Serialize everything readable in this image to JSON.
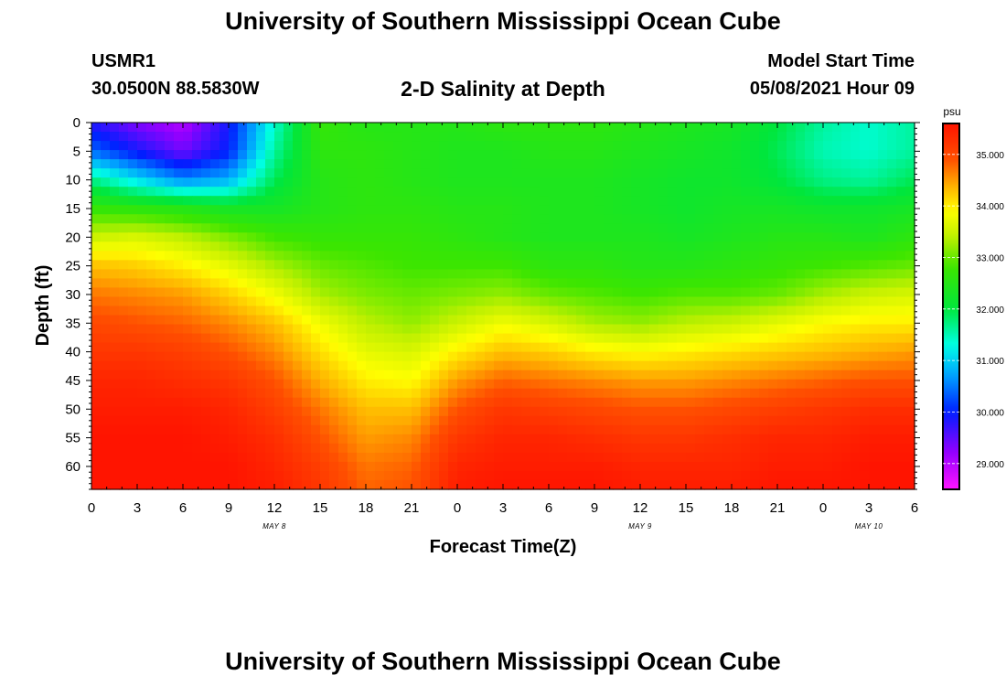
{
  "header": {
    "title_top": "University of Southern Mississippi Ocean Cube",
    "title_bottom": "University of Southern Mississippi Ocean Cube",
    "station_id": "USMR1",
    "station_coords": "30.0500N  88.5830W",
    "plot_title": "2-D Salinity at Depth",
    "model_label": "Model Start Time",
    "model_time": "05/08/2021 Hour 09"
  },
  "chart_data": {
    "type": "heatmap",
    "title": "2-D Salinity at Depth",
    "xlabel": "Forecast Time(Z)",
    "ylabel": "Depth (ft)",
    "x_hours": [
      0,
      3,
      6,
      9,
      12,
      15,
      18,
      21,
      24,
      27,
      30,
      33,
      36,
      39,
      42,
      45,
      48,
      51,
      54
    ],
    "x_tick_labels": [
      "0",
      "3",
      "6",
      "9",
      "12",
      "15",
      "18",
      "21",
      "0",
      "3",
      "6",
      "9",
      "12",
      "15",
      "18",
      "21",
      "0",
      "3",
      "6"
    ],
    "xlim": [
      0,
      54
    ],
    "date_labels": [
      {
        "text": "MAY 8",
        "hour": 12
      },
      {
        "text": "MAY 9",
        "hour": 36
      },
      {
        "text": "MAY 10",
        "hour": 51
      }
    ],
    "y_ticks": [
      0,
      5,
      10,
      15,
      20,
      25,
      30,
      35,
      40,
      45,
      50,
      55,
      60
    ],
    "ylim": [
      0,
      64
    ],
    "colorbar": {
      "unit": "psu",
      "range": [
        28.5,
        35.6
      ],
      "tick_values": [
        29,
        30,
        31,
        32,
        33,
        34,
        35
      ],
      "tick_labels": [
        "29.000",
        "30.000",
        "31.000",
        "32.000",
        "33.000",
        "34.000",
        "35.000"
      ]
    },
    "grid_hours": [
      0,
      3,
      6,
      9,
      12,
      15,
      18,
      21,
      24,
      27,
      30,
      33,
      36,
      39,
      42,
      45,
      48,
      51,
      54
    ],
    "grid_depths": [
      0,
      5,
      10,
      15,
      20,
      25,
      30,
      35,
      40,
      45,
      50,
      55,
      60,
      64
    ],
    "values": [
      [
        29.8,
        29.3,
        29.0,
        29.9,
        31.4,
        32.7,
        32.5,
        32.5,
        32.5,
        32.6,
        32.6,
        32.6,
        32.5,
        32.4,
        32.3,
        32.0,
        31.6,
        31.4,
        31.6
      ],
      [
        30.4,
        29.9,
        29.4,
        30.0,
        31.6,
        32.6,
        32.6,
        32.5,
        32.4,
        32.4,
        32.5,
        32.5,
        32.4,
        32.3,
        32.2,
        31.9,
        31.5,
        31.4,
        31.6
      ],
      [
        31.7,
        31.1,
        30.6,
        30.8,
        31.9,
        32.5,
        32.6,
        32.5,
        32.4,
        32.4,
        32.4,
        32.4,
        32.3,
        32.2,
        32.2,
        32.0,
        31.7,
        31.6,
        31.9
      ],
      [
        32.7,
        32.6,
        32.5,
        32.3,
        32.3,
        32.5,
        32.6,
        32.6,
        32.5,
        32.5,
        32.4,
        32.4,
        32.3,
        32.2,
        32.3,
        32.3,
        32.2,
        32.2,
        32.3
      ],
      [
        33.5,
        33.6,
        33.4,
        33.1,
        32.8,
        32.7,
        32.7,
        32.7,
        32.6,
        32.5,
        32.4,
        32.4,
        32.4,
        32.3,
        32.4,
        32.5,
        32.5,
        32.4,
        32.6
      ],
      [
        34.3,
        34.2,
        34.0,
        33.7,
        33.3,
        33.0,
        32.9,
        32.8,
        32.8,
        32.8,
        32.6,
        32.6,
        32.5,
        32.5,
        32.6,
        32.7,
        32.8,
        32.9,
        33.0
      ],
      [
        34.7,
        34.6,
        34.5,
        34.2,
        33.8,
        33.3,
        33.1,
        33.0,
        33.1,
        33.2,
        33.0,
        32.9,
        32.8,
        32.9,
        32.9,
        33.0,
        33.3,
        33.5,
        33.6
      ],
      [
        35.0,
        34.9,
        34.8,
        34.6,
        34.3,
        33.8,
        33.4,
        33.2,
        33.5,
        33.8,
        33.6,
        33.3,
        33.2,
        33.4,
        33.5,
        33.7,
        33.9,
        34.0,
        34.0
      ],
      [
        35.2,
        35.2,
        35.1,
        34.9,
        34.6,
        34.1,
        33.7,
        33.6,
        34.0,
        34.3,
        34.2,
        34.0,
        33.9,
        34.0,
        34.1,
        34.2,
        34.3,
        34.4,
        34.5
      ],
      [
        35.4,
        35.4,
        35.3,
        35.2,
        34.9,
        34.4,
        34.0,
        33.9,
        34.5,
        34.8,
        34.7,
        34.6,
        34.5,
        34.5,
        34.6,
        34.7,
        34.8,
        34.9,
        34.9
      ],
      [
        35.5,
        35.5,
        35.5,
        35.4,
        35.1,
        34.7,
        34.3,
        34.3,
        34.9,
        35.2,
        35.1,
        35.0,
        34.9,
        34.9,
        35.0,
        35.1,
        35.2,
        35.3,
        35.3
      ],
      [
        35.6,
        35.6,
        35.6,
        35.5,
        35.3,
        34.9,
        34.5,
        34.6,
        35.2,
        35.4,
        35.4,
        35.3,
        35.2,
        35.2,
        35.3,
        35.4,
        35.4,
        35.5,
        35.5
      ],
      [
        35.6,
        35.6,
        35.6,
        35.6,
        35.4,
        35.1,
        34.7,
        34.8,
        35.4,
        35.5,
        35.5,
        35.5,
        35.4,
        35.4,
        35.4,
        35.5,
        35.5,
        35.6,
        35.6
      ],
      [
        35.6,
        35.6,
        35.6,
        35.6,
        35.5,
        35.2,
        34.8,
        34.9,
        35.5,
        35.6,
        35.6,
        35.6,
        35.5,
        35.5,
        35.5,
        35.6,
        35.6,
        35.6,
        35.6
      ]
    ]
  }
}
